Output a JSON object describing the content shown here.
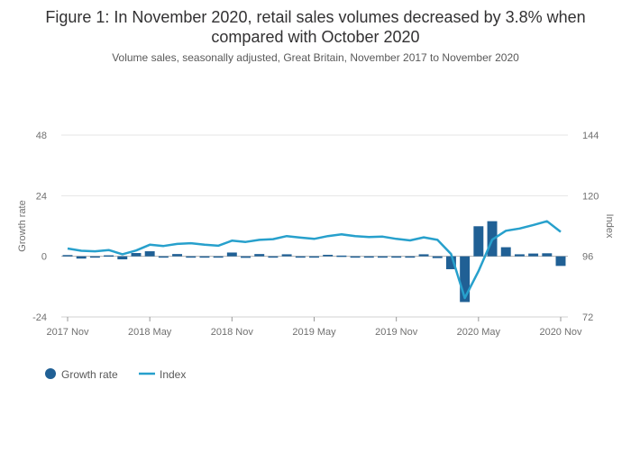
{
  "chart_data": {
    "type": "bar",
    "title_lines": [
      "Figure 1: In November 2020, retail sales volumes decreased by 3.8% when",
      "compared with October 2020"
    ],
    "subtitle": "Volume sales, seasonally adjusted, Great Britain, November 2017 to November 2020",
    "x": [
      "2017-11",
      "2017-12",
      "2018-01",
      "2018-02",
      "2018-03",
      "2018-04",
      "2018-05",
      "2018-06",
      "2018-07",
      "2018-08",
      "2018-09",
      "2018-10",
      "2018-11",
      "2018-12",
      "2019-01",
      "2019-02",
      "2019-03",
      "2019-04",
      "2019-05",
      "2019-06",
      "2019-07",
      "2019-08",
      "2019-09",
      "2019-10",
      "2019-11",
      "2019-12",
      "2020-01",
      "2020-02",
      "2020-03",
      "2020-04",
      "2020-05",
      "2020-06",
      "2020-07",
      "2020-08",
      "2020-09",
      "2020-10",
      "2020-11"
    ],
    "x_ticks": {
      "values": [
        "2017-11",
        "2018-05",
        "2018-11",
        "2019-05",
        "2019-11",
        "2020-05",
        "2020-11"
      ],
      "labels": [
        "2017 Nov",
        "2018 May",
        "2018 Nov",
        "2019 May",
        "2019 Nov",
        "2020 May",
        "2020 Nov"
      ]
    },
    "y_left": {
      "label": "Growth rate",
      "ticks": [
        -24,
        0,
        24,
        48
      ],
      "range": [
        -24,
        48
      ]
    },
    "y_right": {
      "label": "Index",
      "ticks": [
        72,
        96,
        120,
        144
      ],
      "range": [
        72,
        144
      ]
    },
    "grid": "horizontal",
    "legend_position": "bottom-left",
    "series": [
      {
        "name": "Growth rate",
        "kind": "bar",
        "axis": "left",
        "color": "#206095",
        "values": [
          0.5,
          -0.9,
          -0.3,
          0.4,
          -1.2,
          1.3,
          2.0,
          -0.5,
          0.9,
          -0.2,
          -0.4,
          -0.5,
          1.5,
          -0.6,
          0.9,
          -0.3,
          0.8,
          -0.4,
          -0.5,
          0.6,
          0.3,
          -0.3,
          -0.4,
          -0.2,
          -0.3,
          -0.4,
          0.8,
          -0.7,
          -5.1,
          -18.1,
          11.9,
          13.9,
          3.6,
          0.8,
          1.1,
          1.2,
          -3.8
        ]
      },
      {
        "name": "Index",
        "kind": "line",
        "axis": "right",
        "color": "#27a0cc",
        "values": [
          99.1,
          98.2,
          98.0,
          98.5,
          96.8,
          98.3,
          100.6,
          100.1,
          100.9,
          101.2,
          100.6,
          100.2,
          102.2,
          101.7,
          102.5,
          102.8,
          104.0,
          103.4,
          102.9,
          104.0,
          104.7,
          104.0,
          103.6,
          103.8,
          102.9,
          102.3,
          103.5,
          102.5,
          96.9,
          79.5,
          90.1,
          102.6,
          106.1,
          107.0,
          108.4,
          109.9,
          105.7
        ]
      }
    ]
  }
}
